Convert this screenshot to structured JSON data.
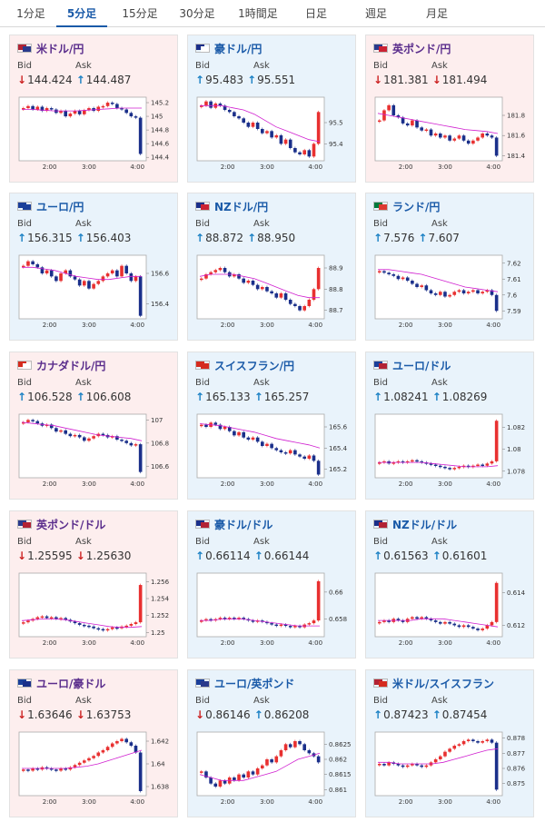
{
  "tabs": [
    {
      "label": "1分足",
      "active": false
    },
    {
      "label": "5分足",
      "active": true
    },
    {
      "label": "15分足",
      "active": false
    },
    {
      "label": "30分足",
      "active": false
    },
    {
      "label": "1時間足",
      "active": false
    },
    {
      "label": "日足",
      "active": false
    },
    {
      "label": "週足",
      "active": false
    },
    {
      "label": "月足",
      "active": false
    }
  ],
  "labels": {
    "bid": "Bid",
    "ask": "Ask"
  },
  "colors": {
    "up_candle": "#e83030",
    "down_candle": "#1a2f8a",
    "ma_line": "#d020d0",
    "up_arrow": "#1a80c4",
    "down_arrow": "#cc2222"
  },
  "cards": [
    {
      "name": "米ドル/円",
      "theme": "red",
      "flag": [
        "#b22234",
        "#2a3a8c"
      ],
      "bid_dir": "down",
      "bid": "144.424",
      "ask_dir": "up",
      "ask": "144.487",
      "chart_data": {
        "type": "line",
        "x_ticks": [
          "2:00",
          "3:00",
          "4:00"
        ],
        "y_ticks": [
          "145.2",
          "145",
          "144.8",
          "144.6",
          "144.4"
        ],
        "ylim": [
          144.35,
          145.28
        ],
        "candles": [
          145.12,
          145.15,
          145.1,
          145.14,
          145.08,
          145.12,
          145.1,
          145.05,
          145.08,
          145.0,
          145.04,
          145.08,
          145.03,
          145.09,
          145.12,
          145.08,
          145.14,
          145.15,
          145.2,
          145.18,
          145.12,
          145.1,
          145.05,
          145.0,
          144.98,
          144.45
        ],
        "ma": [
          145.1,
          145.1,
          145.09,
          145.08,
          145.08,
          145.08,
          145.09,
          145.1,
          145.11,
          145.12,
          145.12,
          145.12
        ]
      }
    },
    {
      "name": "豪ドル/円",
      "theme": "blue",
      "flag": [
        "#1a2f8a",
        "#ffffff"
      ],
      "bid_dir": "up",
      "bid": "95.483",
      "ask_dir": "up",
      "ask": "95.551",
      "chart_data": {
        "type": "line",
        "x_ticks": [
          "2:00",
          "3:00",
          "4:00"
        ],
        "y_ticks": [
          "95.5",
          "95.4"
        ],
        "ylim": [
          95.32,
          95.62
        ],
        "candles": [
          95.58,
          95.6,
          95.57,
          95.59,
          95.58,
          95.56,
          95.55,
          95.53,
          95.52,
          95.5,
          95.48,
          95.5,
          95.47,
          95.45,
          95.46,
          95.43,
          95.44,
          95.4,
          95.42,
          95.38,
          95.36,
          95.35,
          95.37,
          95.34,
          95.4,
          95.55
        ],
        "ma": [
          95.58,
          95.58,
          95.58,
          95.57,
          95.56,
          95.54,
          95.51,
          95.48,
          95.46,
          95.44,
          95.42,
          95.41
        ]
      }
    },
    {
      "name": "英ポンド/円",
      "theme": "red",
      "flag": [
        "#2a3a8c",
        "#cc2233"
      ],
      "bid_dir": "down",
      "bid": "181.381",
      "ask_dir": "down",
      "ask": "181.494",
      "chart_data": {
        "type": "line",
        "x_ticks": [
          "2:00",
          "3:00",
          "4:00"
        ],
        "y_ticks": [
          "181.8",
          "181.6",
          "181.4"
        ],
        "ylim": [
          181.35,
          181.98
        ],
        "candles": [
          181.75,
          181.85,
          181.9,
          181.8,
          181.78,
          181.72,
          181.7,
          181.75,
          181.68,
          181.65,
          181.66,
          181.6,
          181.62,
          181.58,
          181.6,
          181.55,
          181.57,
          181.6,
          181.55,
          181.52,
          181.55,
          181.58,
          181.62,
          181.6,
          181.58,
          181.4
        ],
        "ma": [
          181.82,
          181.8,
          181.78,
          181.76,
          181.74,
          181.72,
          181.7,
          181.68,
          181.66,
          181.65,
          181.64,
          181.62
        ]
      }
    },
    {
      "name": "ユーロ/円",
      "theme": "blue",
      "flag": [
        "#1a3f9a",
        "#1a3f9a"
      ],
      "bid_dir": "up",
      "bid": "156.315",
      "ask_dir": "up",
      "ask": "156.403",
      "chart_data": {
        "type": "line",
        "x_ticks": [
          "2:00",
          "3:00",
          "4:00"
        ],
        "y_ticks": [
          "156.6",
          "156.4"
        ],
        "ylim": [
          156.3,
          156.72
        ],
        "candles": [
          156.65,
          156.68,
          156.66,
          156.64,
          156.6,
          156.62,
          156.58,
          156.55,
          156.6,
          156.62,
          156.58,
          156.56,
          156.52,
          156.55,
          156.5,
          156.53,
          156.55,
          156.58,
          156.6,
          156.62,
          156.58,
          156.65,
          156.6,
          156.55,
          156.58,
          156.32
        ],
        "ma": [
          156.64,
          156.64,
          156.63,
          156.62,
          156.6,
          156.58,
          156.57,
          156.56,
          156.56,
          156.57,
          156.58,
          156.58
        ]
      }
    },
    {
      "name": "NZドル/円",
      "theme": "blue",
      "flag": [
        "#1a2f8a",
        "#cc2233"
      ],
      "bid_dir": "up",
      "bid": "88.872",
      "ask_dir": "up",
      "ask": "88.950",
      "chart_data": {
        "type": "line",
        "x_ticks": [
          "2:00",
          "3:00",
          "4:00"
        ],
        "y_ticks": [
          "88.9",
          "88.8",
          "88.7"
        ],
        "ylim": [
          88.66,
          88.96
        ],
        "candles": [
          88.85,
          88.87,
          88.88,
          88.89,
          88.9,
          88.88,
          88.86,
          88.87,
          88.85,
          88.83,
          88.84,
          88.82,
          88.8,
          88.81,
          88.79,
          88.78,
          88.76,
          88.78,
          88.75,
          88.73,
          88.72,
          88.7,
          88.72,
          88.75,
          88.8,
          88.9
        ],
        "ma": [
          88.86,
          88.87,
          88.87,
          88.87,
          88.86,
          88.85,
          88.83,
          88.81,
          88.79,
          88.77,
          88.76,
          88.76
        ]
      }
    },
    {
      "name": "ランド/円",
      "theme": "blue",
      "flag": [
        "#007a3d",
        "#de3831"
      ],
      "bid_dir": "up",
      "bid": "7.576",
      "ask_dir": "up",
      "ask": "7.607",
      "chart_data": {
        "type": "line",
        "x_ticks": [
          "2:00",
          "3:00",
          "4:00"
        ],
        "y_ticks": [
          "7.62",
          "7.61",
          "7.6",
          "7.59"
        ],
        "ylim": [
          7.585,
          7.625
        ],
        "candles": [
          7.615,
          7.614,
          7.613,
          7.612,
          7.61,
          7.611,
          7.609,
          7.607,
          7.605,
          7.606,
          7.603,
          7.601,
          7.6,
          7.602,
          7.599,
          7.6,
          7.602,
          7.603,
          7.601,
          7.602,
          7.603,
          7.601,
          7.602,
          7.603,
          7.6,
          7.59
        ],
        "ma": [
          7.616,
          7.616,
          7.615,
          7.614,
          7.613,
          7.611,
          7.609,
          7.607,
          7.605,
          7.604,
          7.603,
          7.602
        ]
      }
    },
    {
      "name": "カナダドル/円",
      "theme": "red",
      "flag": [
        "#d52b1e",
        "#ffffff"
      ],
      "bid_dir": "up",
      "bid": "106.528",
      "ask_dir": "up",
      "ask": "106.608",
      "chart_data": {
        "type": "line",
        "x_ticks": [
          "2:00",
          "3:00",
          "4:00"
        ],
        "y_ticks": [
          "107",
          "106.8",
          "106.6"
        ],
        "ylim": [
          106.5,
          107.05
        ],
        "candles": [
          106.98,
          107.0,
          106.99,
          106.97,
          106.95,
          106.96,
          106.93,
          106.9,
          106.91,
          106.88,
          106.86,
          106.87,
          106.85,
          106.82,
          106.84,
          106.86,
          106.88,
          106.87,
          106.85,
          106.86,
          106.83,
          106.82,
          106.8,
          106.78,
          106.79,
          106.55
        ],
        "ma": [
          106.98,
          106.97,
          106.96,
          106.95,
          106.93,
          106.91,
          106.89,
          106.87,
          106.86,
          106.85,
          106.84,
          106.82
        ]
      }
    },
    {
      "name": "スイスフラン/円",
      "theme": "blue",
      "flag": [
        "#d52b1e",
        "#d52b1e"
      ],
      "bid_dir": "up",
      "bid": "165.133",
      "ask_dir": "up",
      "ask": "165.257",
      "chart_data": {
        "type": "line",
        "x_ticks": [
          "2:00",
          "3:00",
          "4:00"
        ],
        "y_ticks": [
          "165.6",
          "165.4",
          "165.2"
        ],
        "ylim": [
          165.12,
          165.72
        ],
        "candles": [
          165.62,
          165.6,
          165.64,
          165.62,
          165.58,
          165.6,
          165.56,
          165.52,
          165.55,
          165.5,
          165.48,
          165.5,
          165.46,
          165.42,
          165.44,
          165.4,
          165.38,
          165.36,
          165.35,
          165.38,
          165.34,
          165.32,
          165.3,
          165.33,
          165.28,
          165.15
        ],
        "ma": [
          165.63,
          165.62,
          165.61,
          165.59,
          165.57,
          165.55,
          165.52,
          165.49,
          165.47,
          165.45,
          165.43,
          165.4
        ]
      }
    },
    {
      "name": "ユーロ/ドル",
      "theme": "blue",
      "flag": [
        "#1a3f9a",
        "#b22234"
      ],
      "bid_dir": "up",
      "bid": "1.08241",
      "ask_dir": "up",
      "ask": "1.08269",
      "chart_data": {
        "type": "line",
        "x_ticks": [
          "2:00",
          "3:00",
          "4:00"
        ],
        "y_ticks": [
          "1.082",
          "1.08",
          "1.078"
        ],
        "ylim": [
          1.0774,
          1.0832
        ],
        "candles": [
          1.0788,
          1.0789,
          1.0787,
          1.0788,
          1.0789,
          1.0788,
          1.0789,
          1.079,
          1.0789,
          1.0788,
          1.0787,
          1.0786,
          1.0785,
          1.0784,
          1.0783,
          1.0782,
          1.0783,
          1.0784,
          1.0785,
          1.0784,
          1.0785,
          1.0786,
          1.0785,
          1.0787,
          1.0789,
          1.0826
        ],
        "ma": [
          1.0788,
          1.0788,
          1.0788,
          1.0788,
          1.0788,
          1.0787,
          1.0786,
          1.0785,
          1.0784,
          1.0784,
          1.0784,
          1.0785
        ]
      }
    },
    {
      "name": "英ポンド/ドル",
      "theme": "red",
      "flag": [
        "#2a3a8c",
        "#b22234"
      ],
      "bid_dir": "down",
      "bid": "1.25595",
      "ask_dir": "down",
      "ask": "1.25630",
      "chart_data": {
        "type": "line",
        "x_ticks": [
          "2:00",
          "3:00",
          "4:00"
        ],
        "y_ticks": [
          "1.256",
          "1.254",
          "1.252",
          "1.25"
        ],
        "ylim": [
          1.2495,
          1.257
        ],
        "candles": [
          1.2512,
          1.2514,
          1.2516,
          1.2518,
          1.2519,
          1.2517,
          1.2518,
          1.2516,
          1.2517,
          1.2515,
          1.2513,
          1.2511,
          1.2509,
          1.2508,
          1.2507,
          1.2505,
          1.2504,
          1.2503,
          1.2504,
          1.2506,
          1.2505,
          1.2507,
          1.2508,
          1.251,
          1.2512,
          1.2556
        ],
        "ma": [
          1.2514,
          1.2515,
          1.2516,
          1.2516,
          1.2515,
          1.2513,
          1.2511,
          1.2509,
          1.2507,
          1.2506,
          1.2506,
          1.2507
        ]
      }
    },
    {
      "name": "豪ドル/ドル",
      "theme": "blue",
      "flag": [
        "#1a2f8a",
        "#b22234"
      ],
      "bid_dir": "up",
      "bid": "0.66114",
      "ask_dir": "up",
      "ask": "0.66144",
      "chart_data": {
        "type": "line",
        "x_ticks": [
          "2:00",
          "3:00",
          "4:00"
        ],
        "y_ticks": [
          "0.66",
          "0.658"
        ],
        "ylim": [
          0.6567,
          0.6614
        ],
        "candles": [
          0.6579,
          0.658,
          0.6579,
          0.658,
          0.6581,
          0.658,
          0.6581,
          0.658,
          0.6581,
          0.658,
          0.6579,
          0.6578,
          0.6579,
          0.6578,
          0.6577,
          0.6576,
          0.6575,
          0.6576,
          0.6575,
          0.6574,
          0.6575,
          0.6574,
          0.6576,
          0.6577,
          0.6579,
          0.6608
        ],
        "ma": [
          0.6579,
          0.6579,
          0.658,
          0.658,
          0.658,
          0.6579,
          0.6578,
          0.6577,
          0.6576,
          0.6575,
          0.6575,
          0.6575
        ]
      }
    },
    {
      "name": "NZドル/ドル",
      "theme": "blue",
      "flag": [
        "#1a2f8a",
        "#b22234"
      ],
      "bid_dir": "up",
      "bid": "0.61563",
      "ask_dir": "up",
      "ask": "0.61601",
      "chart_data": {
        "type": "line",
        "x_ticks": [
          "2:00",
          "3:00",
          "4:00"
        ],
        "y_ticks": [
          "0.614",
          "0.612"
        ],
        "ylim": [
          0.6113,
          0.6152
        ],
        "candles": [
          0.6122,
          0.6123,
          0.6122,
          0.6124,
          0.6123,
          0.6122,
          0.6124,
          0.6125,
          0.6124,
          0.6125,
          0.6124,
          0.6123,
          0.6122,
          0.6121,
          0.6122,
          0.6121,
          0.612,
          0.6119,
          0.612,
          0.6119,
          0.6118,
          0.6117,
          0.6118,
          0.612,
          0.6122,
          0.6146
        ],
        "ma": [
          0.6123,
          0.6123,
          0.6123,
          0.6123,
          0.6124,
          0.6124,
          0.6124,
          0.6123,
          0.6122,
          0.6121,
          0.612,
          0.6119
        ]
      }
    },
    {
      "name": "ユーロ/豪ドル",
      "theme": "red",
      "flag": [
        "#1a3f9a",
        "#1a2f8a"
      ],
      "bid_dir": "down",
      "bid": "1.63646",
      "ask_dir": "down",
      "ask": "1.63753",
      "chart_data": {
        "type": "line",
        "x_ticks": [
          "2:00",
          "3:00",
          "4:00"
        ],
        "y_ticks": [
          "1.642",
          "1.64",
          "1.638"
        ],
        "ylim": [
          1.6372,
          1.6428
        ],
        "candles": [
          1.6395,
          1.6394,
          1.6396,
          1.6395,
          1.6397,
          1.6396,
          1.6395,
          1.6394,
          1.6396,
          1.6395,
          1.6397,
          1.6399,
          1.6401,
          1.6403,
          1.6405,
          1.6407,
          1.641,
          1.6412,
          1.6415,
          1.6418,
          1.642,
          1.6422,
          1.6419,
          1.6416,
          1.641,
          1.6376
        ],
        "ma": [
          1.6396,
          1.6396,
          1.6396,
          1.6396,
          1.6396,
          1.6397,
          1.6398,
          1.64,
          1.6403,
          1.6406,
          1.6409,
          1.6412
        ]
      }
    },
    {
      "name": "ユーロ/英ポンド",
      "theme": "blue",
      "flag": [
        "#1a3f9a",
        "#2a3a8c"
      ],
      "bid_dir": "down",
      "bid": "0.86146",
      "ask_dir": "up",
      "ask": "0.86208",
      "chart_data": {
        "type": "line",
        "x_ticks": [
          "2:00",
          "3:00",
          "4:00"
        ],
        "y_ticks": [
          "0.8625",
          "0.862",
          "0.8615",
          "0.861"
        ],
        "ylim": [
          0.8608,
          0.8629
        ],
        "candles": [
          0.8616,
          0.8614,
          0.8612,
          0.8611,
          0.8613,
          0.8612,
          0.8614,
          0.8613,
          0.8615,
          0.8614,
          0.8616,
          0.8615,
          0.8617,
          0.8618,
          0.862,
          0.8619,
          0.8621,
          0.8623,
          0.8625,
          0.8624,
          0.8626,
          0.8625,
          0.8623,
          0.8622,
          0.8621,
          0.8619
        ],
        "ma": [
          0.8615,
          0.8614,
          0.8613,
          0.8613,
          0.8613,
          0.8614,
          0.8615,
          0.8616,
          0.8618,
          0.862,
          0.8621,
          0.8622
        ]
      }
    },
    {
      "name": "米ドル/スイスフラン",
      "theme": "blue",
      "flag": [
        "#b22234",
        "#d52b1e"
      ],
      "bid_dir": "up",
      "bid": "0.87423",
      "ask_dir": "up",
      "ask": "0.87454",
      "chart_data": {
        "type": "line",
        "x_ticks": [
          "2:00",
          "3:00",
          "4:00"
        ],
        "y_ticks": [
          "0.878",
          "0.877",
          "0.876",
          "0.875"
        ],
        "ylim": [
          0.8742,
          0.8784
        ],
        "candles": [
          0.8763,
          0.8762,
          0.8764,
          0.8763,
          0.8762,
          0.8761,
          0.8762,
          0.8763,
          0.8762,
          0.8761,
          0.8762,
          0.8764,
          0.8766,
          0.8768,
          0.8771,
          0.8773,
          0.8775,
          0.8776,
          0.8778,
          0.8779,
          0.8778,
          0.8777,
          0.8778,
          0.8779,
          0.8777,
          0.8746
        ],
        "ma": [
          0.8764,
          0.8764,
          0.8763,
          0.8763,
          0.8763,
          0.8763,
          0.8764,
          0.8766,
          0.8768,
          0.877,
          0.8772,
          0.8773
        ]
      }
    }
  ]
}
